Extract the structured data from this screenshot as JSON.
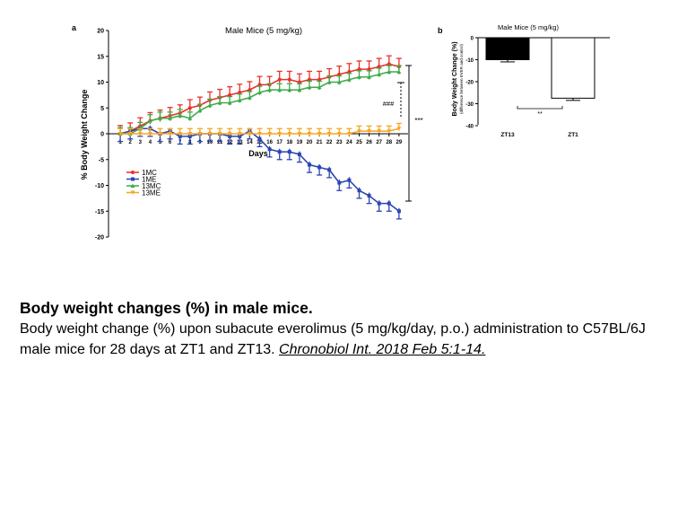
{
  "chart_data": [
    {
      "panel": "a",
      "type": "line",
      "title": "Male Mice (5 mg/kg)",
      "xlabel": "Days",
      "ylabel": "% Body Weight Change",
      "x": [
        1,
        2,
        3,
        4,
        5,
        6,
        7,
        8,
        9,
        10,
        11,
        12,
        13,
        14,
        15,
        16,
        17,
        18,
        19,
        20,
        21,
        22,
        23,
        24,
        25,
        26,
        27,
        28,
        29
      ],
      "xticklabels": [
        "1",
        "2",
        "3",
        "4",
        "5",
        "6",
        "7",
        "8",
        "9",
        "10",
        "11",
        "12",
        "13",
        "14",
        "15",
        "16",
        "17",
        "18",
        "19",
        "20",
        "21",
        "22",
        "23",
        "24",
        "25",
        "26",
        "27",
        "28",
        "29"
      ],
      "ylim": [
        -20,
        20
      ],
      "yticks": [
        -20,
        -15,
        -10,
        -5,
        0,
        5,
        10,
        15,
        20
      ],
      "yticklabels": [
        "-20",
        "-15",
        "-10",
        "-5",
        "0",
        "5",
        "10",
        "15",
        "20"
      ],
      "legend_position": "lower-left",
      "series": [
        {
          "name": "1MC",
          "color": "#e8312a",
          "marker": "circle",
          "values": [
            0,
            0.5,
            1.5,
            2.5,
            3,
            3.5,
            4,
            5,
            5.5,
            6.5,
            7,
            7.5,
            8,
            8.5,
            9.5,
            9.5,
            10.5,
            10.5,
            10,
            10.5,
            10.5,
            11,
            11.5,
            12,
            12.5,
            12.5,
            13,
            13.5,
            13
          ]
        },
        {
          "name": "1ME",
          "color": "#2a46b4",
          "marker": "square",
          "values": [
            0,
            0.5,
            1,
            1,
            0,
            0.5,
            -0.5,
            -0.5,
            0,
            0,
            0,
            -0.5,
            -0.5,
            0.5,
            -1,
            -3,
            -3.5,
            -3.5,
            -4,
            -6,
            -6.5,
            -7,
            -9.5,
            -9,
            -11,
            -12,
            -13.5,
            -13.5,
            -15
          ]
        },
        {
          "name": "13MC",
          "color": "#3cab49",
          "marker": "triangle",
          "values": [
            0,
            0,
            1,
            2.5,
            3,
            3,
            3.5,
            3,
            4.5,
            5.5,
            6,
            6,
            6.5,
            7,
            8,
            8.5,
            8.5,
            8.5,
            8.5,
            9,
            9,
            10,
            10,
            10.5,
            11,
            11,
            11.5,
            12,
            12
          ]
        },
        {
          "name": "13ME",
          "color": "#f5a623",
          "marker": "triangle-down",
          "values": [
            0,
            0,
            0,
            0,
            0,
            0,
            0,
            0,
            0,
            0,
            0,
            0,
            0,
            0,
            0,
            0,
            0,
            0,
            0,
            0,
            0,
            0,
            0,
            0,
            0.5,
            0.5,
            0.5,
            0.5,
            1
          ]
        }
      ],
      "annotations": [
        "###",
        "***"
      ]
    },
    {
      "panel": "b",
      "type": "bar",
      "title": "Male Mice (5 mg/kg)",
      "ylabel": "Body Weight Change (%)",
      "ylabel_sub": "(difference between EVER and control)",
      "categories": [
        "ZT13",
        "ZT1"
      ],
      "values": [
        -10,
        -27.5
      ],
      "errors": [
        1,
        1
      ],
      "colors": [
        "#000000",
        "#ffffff"
      ],
      "ylim": [
        -40,
        0
      ],
      "yticks": [
        0,
        -10,
        -20,
        -30,
        -40
      ],
      "yticklabels": [
        "0",
        "-10",
        "-20",
        "-30",
        "-40"
      ],
      "annotations": [
        "**"
      ]
    }
  ],
  "caption": {
    "title": "Body weight changes (%) in male mice.",
    "body": "Body weight change (%) upon subacute everolimus (5 mg/kg/day, p.o.) administration to C57BL/6J male mice for 28 days at ZT1 and ZT13.",
    "citation": "Chronobiol Int. 2018 Feb 5:1-14."
  }
}
